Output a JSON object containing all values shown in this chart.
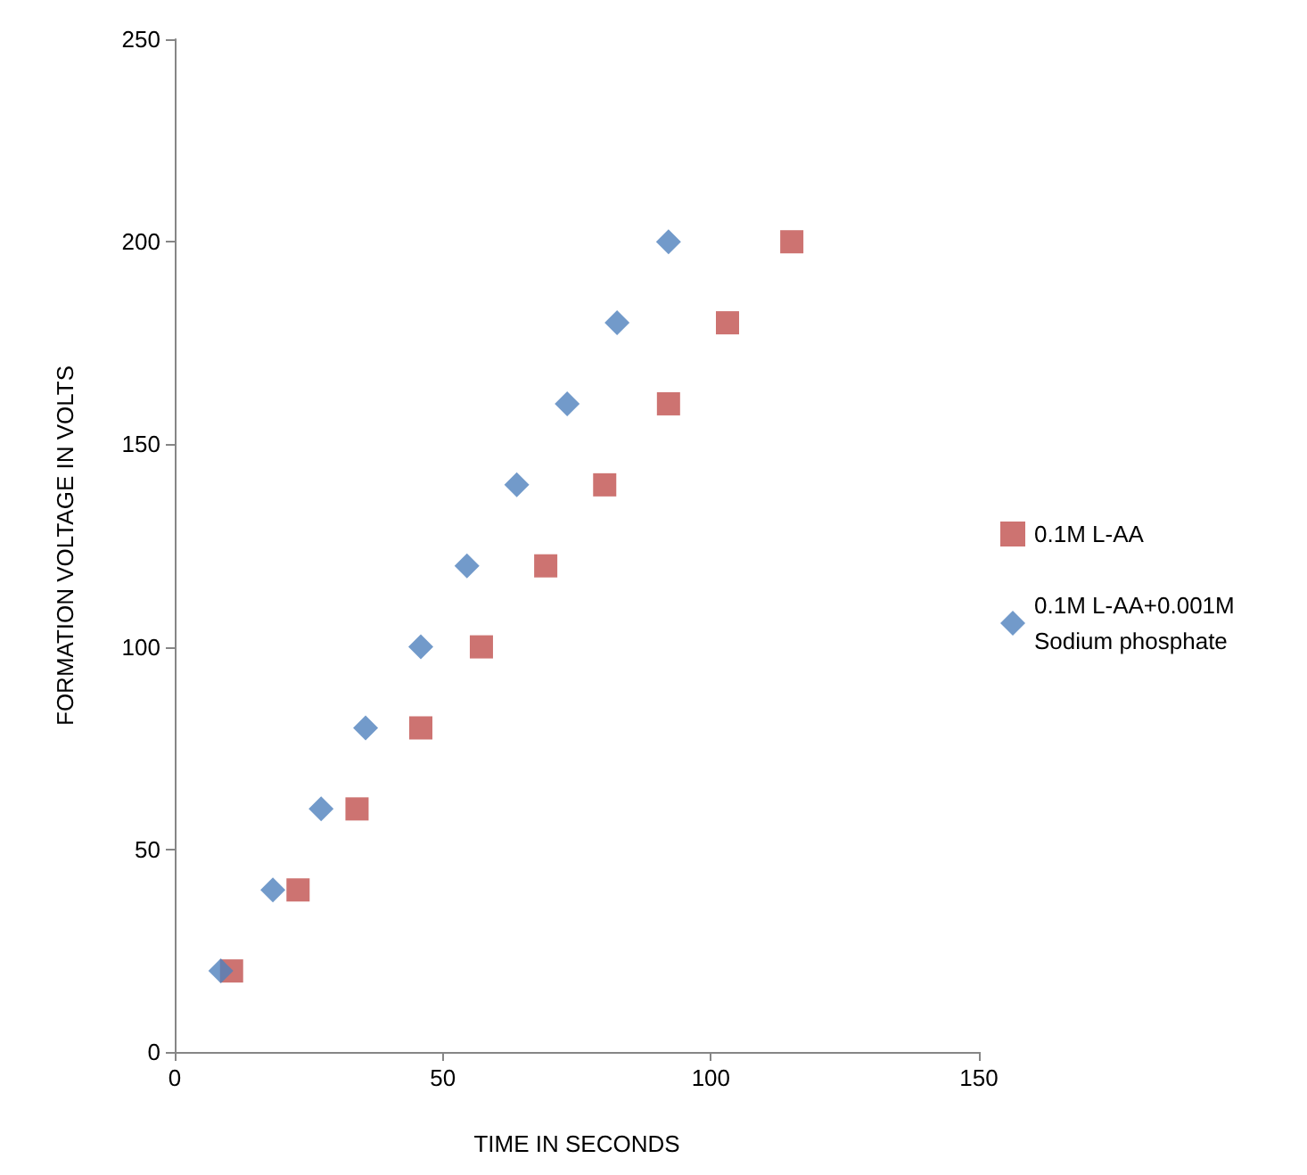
{
  "chart_data": {
    "type": "scatter",
    "xlabel": "TIME IN SECONDS",
    "ylabel": "FORMATION VOLTAGE IN VOLTS",
    "xlim": [
      0,
      150
    ],
    "xticks": [
      0,
      50,
      100,
      150
    ],
    "ylim": [
      0,
      250
    ],
    "yticks": [
      0,
      50,
      100,
      150,
      200,
      250
    ],
    "grid": false,
    "legend": "right",
    "series": [
      {
        "name": "0.1M L-AA",
        "color": "#c0504d",
        "marker": "square",
        "x": [
          10.6,
          23,
          34,
          45.9,
          57.2,
          69.2,
          80.2,
          92.1,
          103.1,
          115.1
        ],
        "values": [
          20,
          40,
          60,
          80,
          100,
          120,
          140,
          160,
          180,
          200
        ]
      },
      {
        "name": "0.1M L-AA+0.001M Sodium phosphate",
        "color": "#4f81bd",
        "marker": "diamond",
        "x": [
          8.6,
          18.3,
          27.3,
          35.6,
          45.9,
          54.5,
          63.8,
          73.2,
          82.5,
          92.1
        ],
        "values": [
          20,
          40,
          60,
          80,
          100,
          120,
          140,
          160,
          180,
          200
        ]
      }
    ]
  }
}
